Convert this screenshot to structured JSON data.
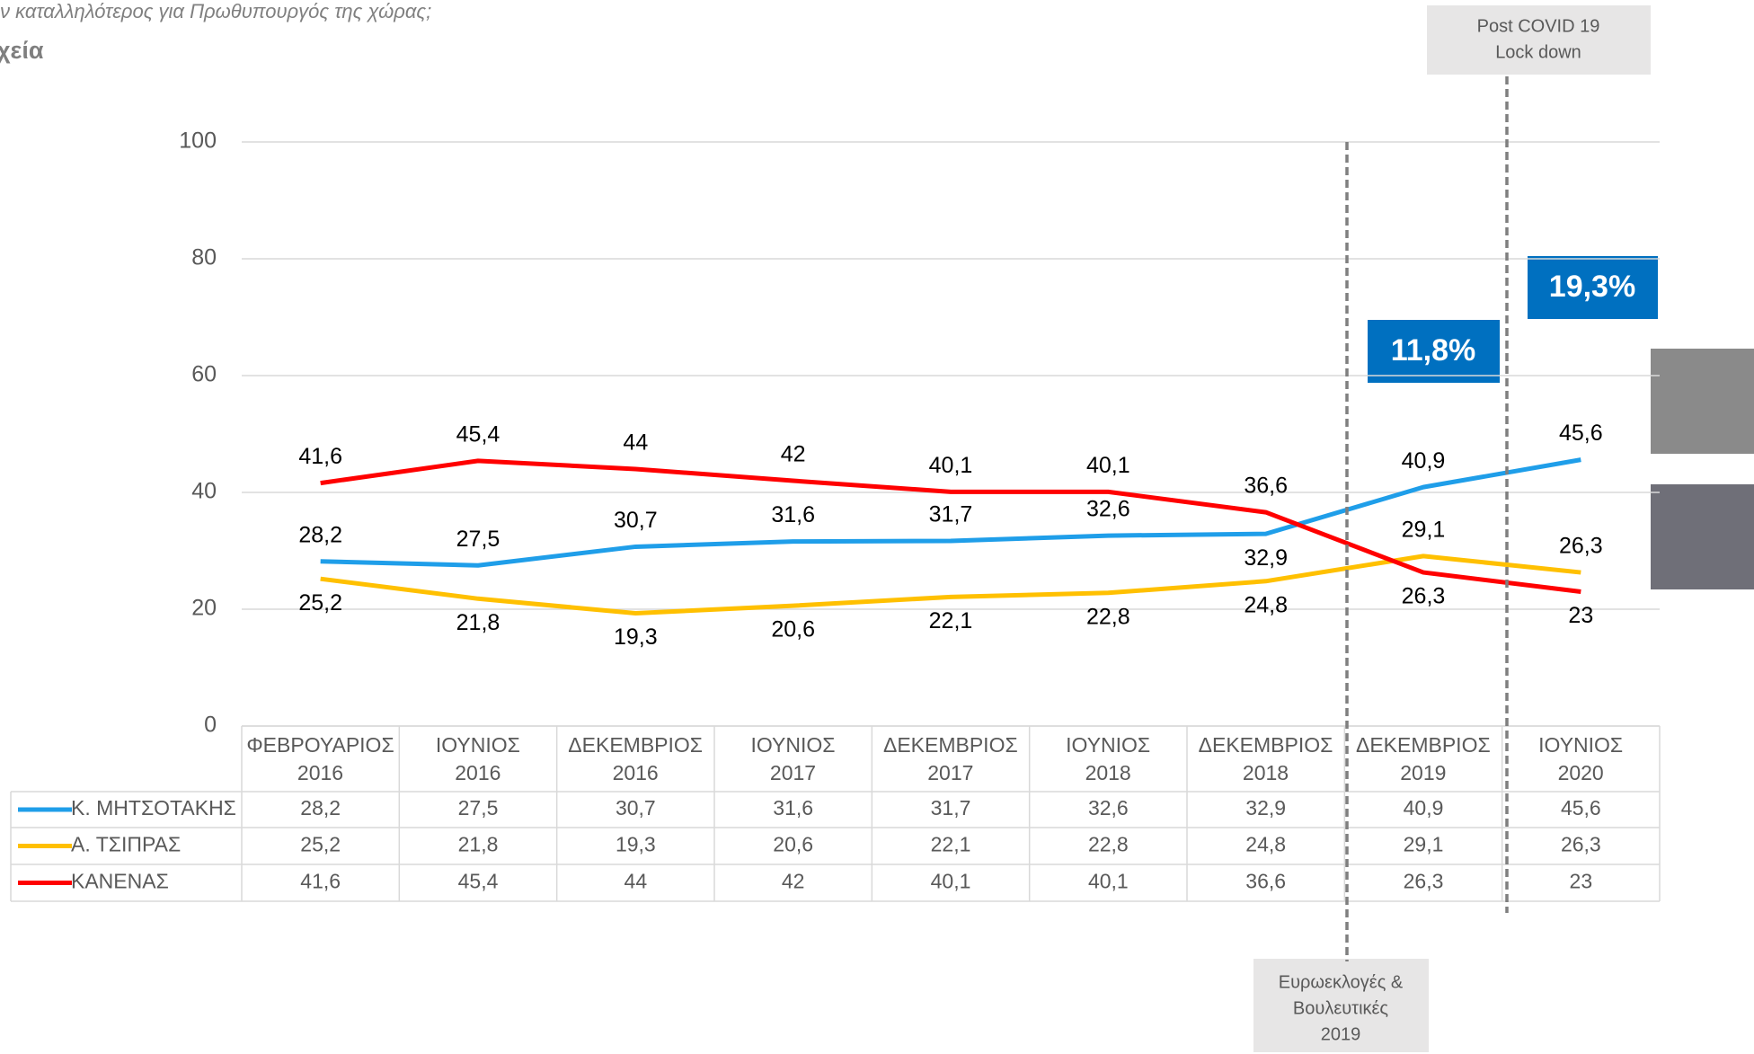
{
  "chart_data": {
    "type": "line",
    "title": "ν καταλληλότερος για Πρωθυπουργός της χώρας;",
    "subtitle": "χεία",
    "categories": [
      "ΦΕΒΡΟΥΑΡΙΟΣ 2016",
      "ΙΟΥΝΙΟΣ 2016",
      "ΔΕΚΕΜΒΡΙΟΣ 2016",
      "ΙΟΥΝΙΟΣ 2017",
      "ΔΕΚΕΜΒΡΙΟΣ 2017",
      "ΙΟΥΝΙΟΣ 2018",
      "ΔΕΚΕΜΒΡΙΟΣ 2018",
      "ΔΕΚΕΜΒΡΙΟΣ 2019",
      "ΙΟΥΝΙΟΣ 2020"
    ],
    "series": [
      {
        "name": "Κ. ΜΗΤΣΟΤΑΚΗΣ",
        "color": "#1f9ee9",
        "values": [
          28.2,
          27.5,
          30.7,
          31.6,
          31.7,
          32.6,
          32.9,
          40.9,
          45.6
        ],
        "value_labels": [
          "28,2",
          "27,5",
          "30,7",
          "31,6",
          "31,7",
          "32,6",
          "32,9",
          "40,9",
          "45,6"
        ]
      },
      {
        "name": "Α. ΤΣΙΠΡΑΣ",
        "color": "#ffc000",
        "values": [
          25.2,
          21.8,
          19.3,
          20.6,
          22.1,
          22.8,
          24.8,
          29.1,
          26.3
        ],
        "value_labels": [
          "25,2",
          "21,8",
          "19,3",
          "20,6",
          "22,1",
          "22,8",
          "24,8",
          "29,1",
          "26,3"
        ]
      },
      {
        "name": "ΚΑΝΕΝΑΣ",
        "color": "#ff0000",
        "values": [
          41.6,
          45.4,
          44,
          42,
          40.1,
          40.1,
          36.6,
          26.3,
          23
        ],
        "value_labels": [
          "41,6",
          "45,4",
          "44",
          "42",
          "40,1",
          "40,1",
          "36,6",
          "26,3",
          "23"
        ]
      }
    ],
    "ylim": [
      0,
      100
    ],
    "yticks": [
      0,
      20,
      40,
      60,
      80,
      100
    ],
    "grid": true,
    "covid_note": [
      "Post  COVID 19",
      "Lock down"
    ],
    "election_note": [
      "Ευρωεκλογές &",
      "Βουλευτικές",
      "2019"
    ],
    "change_labels": [
      "11,8%",
      "19,3%"
    ]
  }
}
